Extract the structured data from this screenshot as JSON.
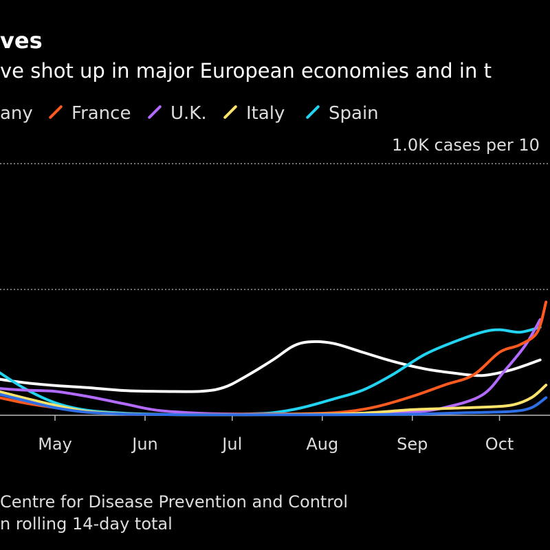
{
  "header": {
    "title": "ves",
    "subtitle": "ve shot up in major European economies and in t"
  },
  "legend": [
    {
      "label": "any",
      "color": "#ffffff",
      "show_swatch": false
    },
    {
      "label": "France",
      "color": "#ff5a1f",
      "show_swatch": true
    },
    {
      "label": "U.K.",
      "color": "#b36bff",
      "show_swatch": true
    },
    {
      "label": "Italy",
      "color": "#ffe36b",
      "show_swatch": true
    },
    {
      "label": "Spain",
      "color": "#22d3f2",
      "show_swatch": true
    }
  ],
  "chart_data": {
    "type": "line",
    "title": "",
    "xlabel": "",
    "ylabel": "",
    "x_ticks": [
      "May",
      "Jun",
      "Jul",
      "Aug",
      "Sep",
      "Oct"
    ],
    "reference_line_label": "1.0K cases per 10",
    "grid_values": [
      500,
      1000
    ],
    "ylim": [
      0,
      1000
    ],
    "grid": true,
    "legend_position": "top",
    "series": [
      {
        "name": "Germany",
        "color": "#ffffff",
        "points": [
          [
            "Apr 8",
            150
          ],
          [
            "Apr 20",
            130
          ],
          [
            "May 1",
            118
          ],
          [
            "May 12",
            110
          ],
          [
            "May 25",
            98
          ],
          [
            "Jun 5",
            95
          ],
          [
            "Jun 20",
            95
          ],
          [
            "Jun 28",
            110
          ],
          [
            "Jul 5",
            150
          ],
          [
            "Jul 15",
            220
          ],
          [
            "Jul 22",
            275
          ],
          [
            "Jul 28",
            292
          ],
          [
            "Aug 5",
            285
          ],
          [
            "Aug 15",
            250
          ],
          [
            "Aug 25",
            215
          ],
          [
            "Sep 5",
            185
          ],
          [
            "Sep 15",
            168
          ],
          [
            "Sep 25",
            158
          ],
          [
            "Oct 5",
            180
          ],
          [
            "Oct 15",
            220
          ]
        ]
      },
      {
        "name": "France",
        "color": "#ff5a1f",
        "points": [
          [
            "Apr 8",
            80
          ],
          [
            "Apr 20",
            50
          ],
          [
            "May 1",
            30
          ],
          [
            "May 12",
            15
          ],
          [
            "May 25",
            5
          ],
          [
            "Jun 5",
            3
          ],
          [
            "Jun 20",
            3
          ],
          [
            "Jul 5",
            4
          ],
          [
            "Jul 20",
            5
          ],
          [
            "Aug 1",
            8
          ],
          [
            "Aug 10",
            15
          ],
          [
            "Aug 20",
            35
          ],
          [
            "Sep 1",
            75
          ],
          [
            "Sep 12",
            120
          ],
          [
            "Sep 22",
            160
          ],
          [
            "Oct 1",
            250
          ],
          [
            "Oct 8",
            280
          ],
          [
            "Oct 14",
            330
          ],
          [
            "Oct 17",
            450
          ]
        ]
      },
      {
        "name": "U.K.",
        "color": "#b36bff",
        "points": [
          [
            "Apr 8",
            110
          ],
          [
            "Apr 20",
            100
          ],
          [
            "May 1",
            95
          ],
          [
            "May 12",
            75
          ],
          [
            "May 25",
            45
          ],
          [
            "Jun 5",
            20
          ],
          [
            "Jun 20",
            8
          ],
          [
            "Jul 5",
            5
          ],
          [
            "Jul 20",
            5
          ],
          [
            "Aug 1",
            5
          ],
          [
            "Aug 20",
            8
          ],
          [
            "Sep 1",
            12
          ],
          [
            "Sep 12",
            30
          ],
          [
            "Sep 25",
            80
          ],
          [
            "Oct 3",
            180
          ],
          [
            "Oct 10",
            280
          ],
          [
            "Oct 15",
            380
          ]
        ]
      },
      {
        "name": "Italy",
        "color": "#ffe36b",
        "points": [
          [
            "Apr 8",
            105
          ],
          [
            "Apr 20",
            70
          ],
          [
            "May 1",
            40
          ],
          [
            "May 12",
            15
          ],
          [
            "May 25",
            6
          ],
          [
            "Jun 5",
            3
          ],
          [
            "Jun 20",
            2
          ],
          [
            "Jul 5",
            2
          ],
          [
            "Jul 20",
            3
          ],
          [
            "Aug 1",
            4
          ],
          [
            "Aug 10",
            6
          ],
          [
            "Aug 20",
            12
          ],
          [
            "Sep 1",
            22
          ],
          [
            "Sep 15",
            28
          ],
          [
            "Sep 25",
            32
          ],
          [
            "Oct 5",
            40
          ],
          [
            "Oct 12",
            70
          ],
          [
            "Oct 17",
            120
          ]
        ]
      },
      {
        "name": "Spain",
        "color": "#22d3f2",
        "points": [
          [
            "Apr 8",
            200
          ],
          [
            "Apr 20",
            110
          ],
          [
            "May 1",
            50
          ],
          [
            "May 12",
            20
          ],
          [
            "May 25",
            8
          ],
          [
            "Jun 5",
            4
          ],
          [
            "Jun 20",
            3
          ],
          [
            "Jul 5",
            5
          ],
          [
            "Jul 15",
            10
          ],
          [
            "Jul 25",
            30
          ],
          [
            "Aug 5",
            65
          ],
          [
            "Aug 15",
            100
          ],
          [
            "Aug 25",
            160
          ],
          [
            "Sep 5",
            240
          ],
          [
            "Sep 15",
            290
          ],
          [
            "Sep 25",
            330
          ],
          [
            "Oct 1",
            340
          ],
          [
            "Oct 8",
            330
          ],
          [
            "Oct 15",
            350
          ]
        ]
      },
      {
        "name": "",
        "color": "#2f6fe6",
        "points": [
          [
            "Apr 8",
            95
          ],
          [
            "Apr 20",
            60
          ],
          [
            "May 1",
            30
          ],
          [
            "May 12",
            12
          ],
          [
            "May 25",
            5
          ],
          [
            "Jun 5",
            3
          ],
          [
            "Jun 20",
            2
          ],
          [
            "Jul 5",
            2
          ],
          [
            "Jul 20",
            2
          ],
          [
            "Aug 5",
            2
          ],
          [
            "Aug 20",
            3
          ],
          [
            "Sep 5",
            5
          ],
          [
            "Sep 20",
            10
          ],
          [
            "Oct 5",
            15
          ],
          [
            "Oct 12",
            30
          ],
          [
            "Oct 17",
            70
          ]
        ]
      }
    ]
  },
  "footer": {
    "line1": " Centre for Disease Prevention and Control",
    "line2": "n rolling 14-day total"
  }
}
